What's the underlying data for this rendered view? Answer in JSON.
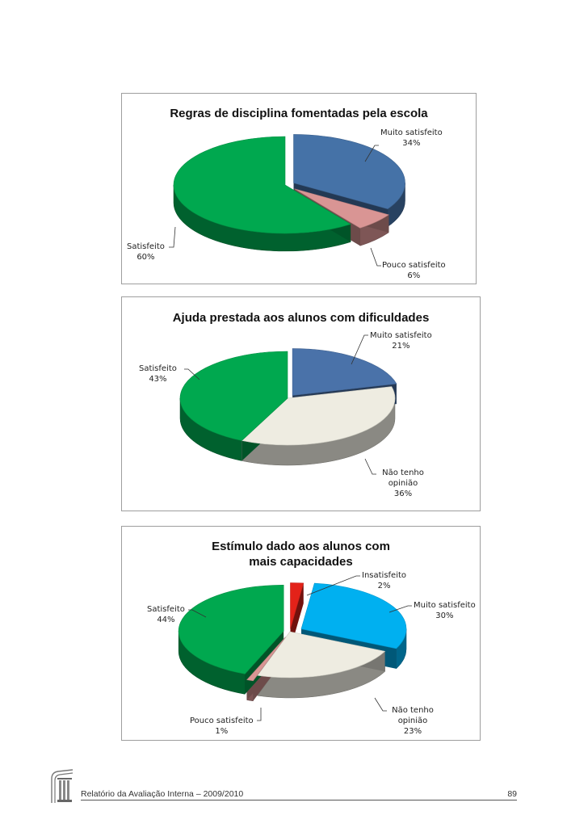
{
  "chart_data": [
    {
      "type": "pie",
      "title": "Regras de disciplina fomentadas pela escola",
      "slices": [
        {
          "label": "Muito satisfeito",
          "value": 34,
          "value_label": "34%",
          "color": "#4572a7"
        },
        {
          "label": "Pouco satisfeito",
          "value": 6,
          "value_label": "6%",
          "color": "#d99594"
        },
        {
          "label": "Satisfeito",
          "value": 60,
          "value_label": "60%",
          "color": "#00a84f"
        }
      ]
    },
    {
      "type": "pie",
      "title": "Ajuda prestada aos alunos com dificuldades",
      "slices": [
        {
          "label": "Muito satisfeito",
          "value": 21,
          "value_label": "21%",
          "color": "#4a72a9"
        },
        {
          "label": "Não tenho opinião",
          "value": 36,
          "value_label": "36%",
          "color": "#eeece1"
        },
        {
          "label": "Satisfeito",
          "value": 43,
          "value_label": "43%",
          "color": "#00a84f"
        }
      ]
    },
    {
      "type": "pie",
      "title": "Estímulo dado aos alunos com mais capacidades",
      "slices": [
        {
          "label": "Insatisfeito",
          "value": 2,
          "value_label": "2%",
          "color": "#e32219"
        },
        {
          "label": "Muito satisfeito",
          "value": 30,
          "value_label": "30%",
          "color": "#00b0f0"
        },
        {
          "label": "Não tenho opinião",
          "value": 23,
          "value_label": "23%",
          "color": "#eeece1"
        },
        {
          "label": "Pouco satisfeito",
          "value": 1,
          "value_label": "1%",
          "color": "#d99594"
        },
        {
          "label": "Satisfeito",
          "value": 44,
          "value_label": "44%",
          "color": "#00a84f"
        }
      ]
    }
  ],
  "footer": {
    "text": "Relatório da Avaliação Interna – 2009/2010",
    "page_number": "89"
  }
}
